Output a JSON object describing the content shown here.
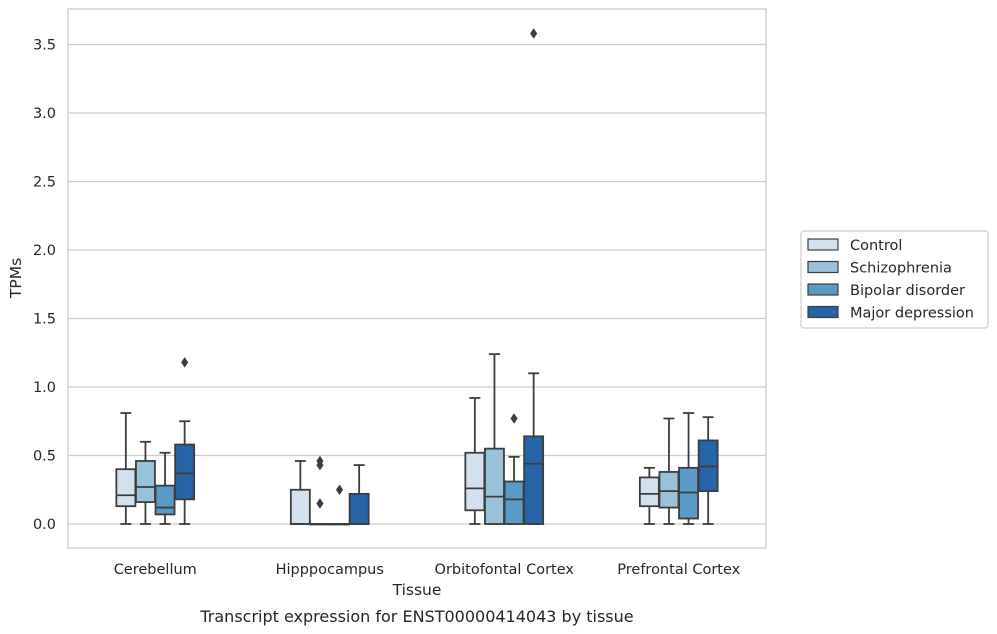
{
  "chart_data": {
    "type": "box",
    "caption": "Transcript expression for ENST00000414043 by tissue",
    "xlabel": "Tissue",
    "ylabel": "TPMs",
    "ylim": [
      -0.17,
      3.77
    ],
    "yticks": [
      "0.0",
      "0.5",
      "1.0",
      "1.5",
      "2.0",
      "2.5",
      "3.0",
      "3.5"
    ],
    "grid": "horizontal",
    "legend_position": "right",
    "categories": [
      "Cerebellum",
      "Hipppocampus",
      "Orbitofontal Cortex",
      "Prefrontal Cortex"
    ],
    "series": [
      {
        "name": "Control",
        "color": "#d3e1ef",
        "boxes": [
          {
            "min": 0.0,
            "q1": 0.13,
            "median": 0.21,
            "q3": 0.4,
            "max": 0.81,
            "outliers": []
          },
          {
            "min": 0.0,
            "q1": 0.0,
            "median": 0.0,
            "q3": 0.25,
            "max": 0.46,
            "outliers": []
          },
          {
            "min": 0.0,
            "q1": 0.1,
            "median": 0.26,
            "q3": 0.52,
            "max": 0.92,
            "outliers": []
          },
          {
            "min": 0.0,
            "q1": 0.13,
            "median": 0.22,
            "q3": 0.34,
            "max": 0.41,
            "outliers": []
          }
        ]
      },
      {
        "name": "Schizophrenia",
        "color": "#9ac1da",
        "boxes": [
          {
            "min": 0.0,
            "q1": 0.16,
            "median": 0.27,
            "q3": 0.46,
            "max": 0.6,
            "outliers": []
          },
          {
            "min": 0.0,
            "q1": 0.0,
            "median": 0.0,
            "q3": 0.0,
            "max": 0.0,
            "outliers": [
              0.46,
              0.43,
              0.15
            ]
          },
          {
            "min": 0.0,
            "q1": 0.0,
            "median": 0.2,
            "q3": 0.55,
            "max": 1.24,
            "outliers": []
          },
          {
            "min": 0.0,
            "q1": 0.12,
            "median": 0.24,
            "q3": 0.38,
            "max": 0.77,
            "outliers": []
          }
        ]
      },
      {
        "name": "Bipolar disorder",
        "color": "#5a9ac7",
        "boxes": [
          {
            "min": 0.0,
            "q1": 0.07,
            "median": 0.12,
            "q3": 0.28,
            "max": 0.52,
            "outliers": []
          },
          {
            "min": 0.0,
            "q1": 0.0,
            "median": 0.0,
            "q3": 0.0,
            "max": 0.0,
            "outliers": [
              0.25
            ]
          },
          {
            "min": 0.0,
            "q1": 0.0,
            "median": 0.18,
            "q3": 0.31,
            "max": 0.49,
            "outliers": [
              0.77
            ]
          },
          {
            "min": 0.0,
            "q1": 0.04,
            "median": 0.23,
            "q3": 0.41,
            "max": 0.81,
            "outliers": []
          }
        ]
      },
      {
        "name": "Major depression",
        "color": "#2664a5",
        "boxes": [
          {
            "min": 0.0,
            "q1": 0.18,
            "median": 0.37,
            "q3": 0.58,
            "max": 0.75,
            "outliers": [
              1.18
            ]
          },
          {
            "min": 0.0,
            "q1": 0.0,
            "median": 0.0,
            "q3": 0.22,
            "max": 0.43,
            "outliers": []
          },
          {
            "min": 0.0,
            "q1": 0.0,
            "median": 0.44,
            "q3": 0.64,
            "max": 1.1,
            "outliers": [
              3.58
            ]
          },
          {
            "min": 0.0,
            "q1": 0.24,
            "median": 0.42,
            "q3": 0.61,
            "max": 0.78,
            "outliers": []
          }
        ]
      }
    ]
  }
}
